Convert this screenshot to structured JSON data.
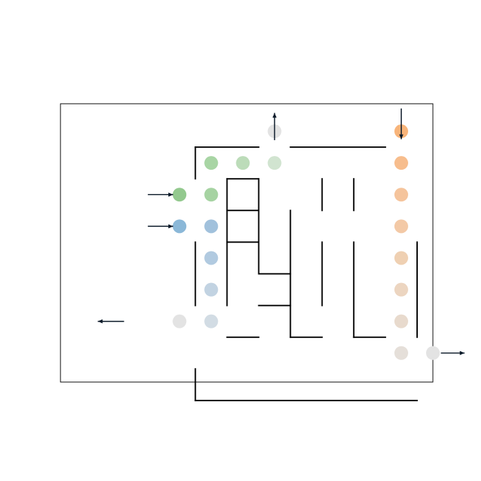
{
  "maze": {
    "grid": {
      "columns": 12,
      "rows": 9
    },
    "colors": {
      "wall": "#000000",
      "frame": "#000000",
      "arrow": "#0d1b2a",
      "background": "#ffffff"
    },
    "walls": [
      [
        3,
        1,
        5,
        1
      ],
      [
        6,
        1,
        9,
        1
      ],
      [
        3,
        1,
        3,
        2
      ],
      [
        4,
        2,
        5,
        2
      ],
      [
        4,
        2,
        4,
        6
      ],
      [
        5,
        2,
        5,
        5
      ],
      [
        4,
        3,
        5,
        3
      ],
      [
        4,
        4,
        5,
        4
      ],
      [
        7,
        2,
        7,
        3
      ],
      [
        8,
        2,
        8,
        3
      ],
      [
        6,
        3,
        6,
        7
      ],
      [
        5,
        5,
        6,
        5
      ],
      [
        5,
        6,
        6,
        6
      ],
      [
        3,
        4,
        3,
        6
      ],
      [
        7,
        4,
        7,
        6
      ],
      [
        8,
        4,
        8,
        7
      ],
      [
        10,
        4,
        10,
        7
      ],
      [
        4,
        7,
        5,
        7
      ],
      [
        6,
        7,
        7,
        7
      ],
      [
        8,
        7,
        9,
        7
      ],
      [
        3,
        8,
        3,
        9
      ],
      [
        3,
        9,
        10,
        9
      ]
    ],
    "markers": [
      {
        "col": 5.5,
        "row": 0.5,
        "color": "#e3e3e3"
      },
      {
        "col": 3.5,
        "row": 1.5,
        "color": "#a8d5a4"
      },
      {
        "col": 4.5,
        "row": 1.5,
        "color": "#bcdcb9"
      },
      {
        "col": 5.5,
        "row": 1.5,
        "color": "#d1e4d0"
      },
      {
        "col": 2.5,
        "row": 2.5,
        "color": "#93c98e"
      },
      {
        "col": 3.5,
        "row": 2.5,
        "color": "#a6d3a2"
      },
      {
        "col": 2.5,
        "row": 3.5,
        "color": "#8bb8d8"
      },
      {
        "col": 3.5,
        "row": 3.5,
        "color": "#a1c1dc"
      },
      {
        "col": 3.5,
        "row": 4.5,
        "color": "#b1cae0"
      },
      {
        "col": 3.5,
        "row": 5.5,
        "color": "#c2d3e2"
      },
      {
        "col": 3.5,
        "row": 6.5,
        "color": "#d2dce4"
      },
      {
        "col": 2.5,
        "row": 6.5,
        "color": "#e3e3e3"
      },
      {
        "col": 9.5,
        "row": 0.5,
        "color": "#f8b47a"
      },
      {
        "col": 9.5,
        "row": 1.5,
        "color": "#f7bd8d"
      },
      {
        "col": 9.5,
        "row": 2.5,
        "color": "#f5c49c"
      },
      {
        "col": 9.5,
        "row": 3.5,
        "color": "#f3c9a6"
      },
      {
        "col": 9.5,
        "row": 4.5,
        "color": "#efd0b2"
      },
      {
        "col": 9.5,
        "row": 5.5,
        "color": "#ecd5c0"
      },
      {
        "col": 9.5,
        "row": 6.5,
        "color": "#e8dacd"
      },
      {
        "col": 9.5,
        "row": 7.5,
        "color": "#e5dfd9"
      },
      {
        "col": 10.5,
        "row": 7.5,
        "color": "#e3e3e3"
      }
    ],
    "arrows": [
      {
        "from": [
          1.5,
          2.5
        ],
        "to": [
          2.3,
          2.5
        ],
        "direction": "right"
      },
      {
        "from": [
          1.5,
          3.5
        ],
        "to": [
          2.3,
          3.5
        ],
        "direction": "right"
      },
      {
        "from": [
          5.5,
          0.78
        ],
        "to": [
          5.5,
          -0.08
        ],
        "direction": "up"
      },
      {
        "from": [
          9.5,
          -0.22
        ],
        "to": [
          9.5,
          0.75
        ],
        "direction": "down"
      },
      {
        "from": [
          0.75,
          6.5
        ],
        "to": [
          -0.08,
          6.5
        ],
        "direction": "left"
      },
      {
        "from": [
          10.75,
          7.5
        ],
        "to": [
          11.5,
          7.5
        ],
        "direction": "right"
      }
    ]
  }
}
